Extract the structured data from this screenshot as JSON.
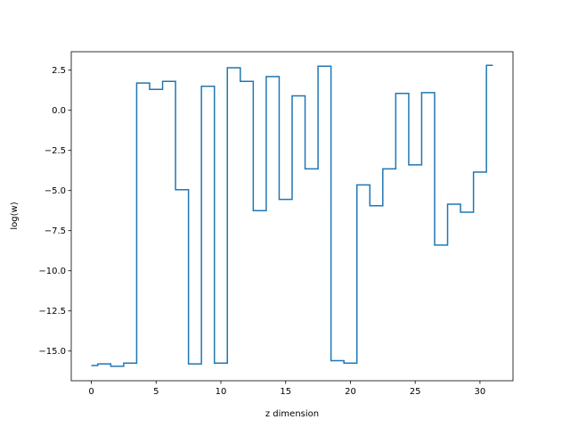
{
  "chart_data": {
    "type": "line",
    "drawstyle": "steps-mid",
    "title": "",
    "xlabel": "z dimension",
    "ylabel": "log(w)",
    "xlim": [
      -1.55,
      32.55
    ],
    "ylim": [
      -16.85,
      3.65
    ],
    "xticks": [
      0,
      5,
      10,
      15,
      20,
      25,
      30
    ],
    "yticks": [
      2.5,
      0.0,
      -2.5,
      -5.0,
      -7.5,
      -10.0,
      -12.5,
      -15.0
    ],
    "ytick_labels": [
      "2.5",
      "0.0",
      "−2.5",
      "−5.0",
      "−7.5",
      "−10.0",
      "−12.5",
      "−15.0"
    ],
    "grid": false,
    "colors": {
      "line": "#1f77b4"
    },
    "x": [
      0,
      1,
      2,
      3,
      4,
      5,
      6,
      7,
      8,
      9,
      10,
      11,
      12,
      13,
      14,
      15,
      16,
      17,
      18,
      19,
      20,
      21,
      22,
      23,
      24,
      25,
      26,
      27,
      28,
      29,
      30,
      31
    ],
    "values": [
      -15.9,
      -15.8,
      -15.95,
      -15.75,
      1.7,
      1.3,
      1.8,
      -4.95,
      -15.8,
      1.5,
      -15.75,
      2.65,
      1.8,
      -6.25,
      2.1,
      -5.55,
      0.9,
      -3.65,
      2.75,
      -15.6,
      -15.75,
      -4.65,
      -5.95,
      -3.65,
      1.05,
      -3.4,
      1.1,
      -8.4,
      -5.85,
      -6.35,
      -3.85,
      2.8
    ]
  }
}
